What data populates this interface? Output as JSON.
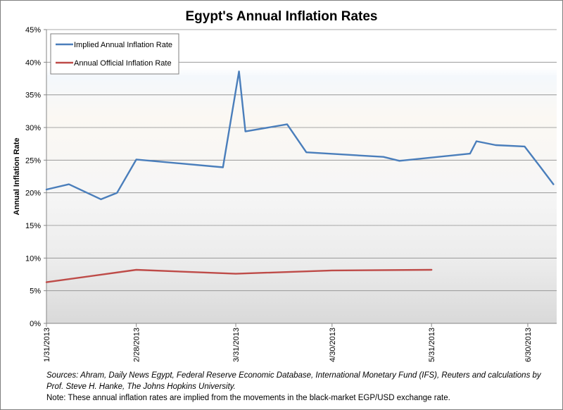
{
  "chart_data": {
    "type": "line",
    "title": "Egypt's Annual Inflation Rates",
    "ylabel": "Annual Inflation Rate",
    "xlabel": "",
    "ylim": [
      0,
      45
    ],
    "y_ticks": [
      "0%",
      "5%",
      "10%",
      "15%",
      "20%",
      "25%",
      "30%",
      "35%",
      "40%",
      "45%"
    ],
    "x_ticks": [
      "1/31/2013",
      "2/28/2013",
      "3/31/2013",
      "4/30/2013",
      "5/31/2013",
      "6/30/2013"
    ],
    "xlim": [
      "2013-01-31",
      "2013-07-09"
    ],
    "grid": "horizontal",
    "legend_position": "top-left",
    "series": [
      {
        "name": "Implied Annual Inflation Rate",
        "color": "#4a7ebb",
        "points": [
          [
            "2013-01-31",
            20.5
          ],
          [
            "2013-02-07",
            21.3
          ],
          [
            "2013-02-17",
            19.0
          ],
          [
            "2013-02-22",
            20.0
          ],
          [
            "2013-02-28",
            25.1
          ],
          [
            "2013-03-27",
            23.9
          ],
          [
            "2013-04-01",
            38.6
          ],
          [
            "2013-04-03",
            29.4
          ],
          [
            "2013-04-16",
            30.5
          ],
          [
            "2013-04-22",
            26.2
          ],
          [
            "2013-05-16",
            25.5
          ],
          [
            "2013-05-21",
            24.9
          ],
          [
            "2013-06-12",
            26.0
          ],
          [
            "2013-06-14",
            27.9
          ],
          [
            "2013-06-20",
            27.3
          ],
          [
            "2013-06-29",
            27.1
          ],
          [
            "2013-07-04",
            23.9
          ],
          [
            "2013-07-08",
            21.3
          ]
        ]
      },
      {
        "name": "Annual Official Inflation Rate",
        "color": "#be4b48",
        "points": [
          [
            "2013-01-31",
            6.3
          ],
          [
            "2013-02-28",
            8.2
          ],
          [
            "2013-03-31",
            7.6
          ],
          [
            "2013-04-30",
            8.1
          ],
          [
            "2013-05-31",
            8.2
          ]
        ]
      }
    ]
  },
  "notes": {
    "sources": "Sources: Ahram, Daily News Egypt, Federal Reserve Economic Database, International Monetary Fund (IFS),  Reuters and calculations by Prof. Steve H. Hanke, The Johns Hopkins University.",
    "note": "Note: These annual inflation rates are implied from the movements in the  black-market EGP/USD exchange rate."
  }
}
